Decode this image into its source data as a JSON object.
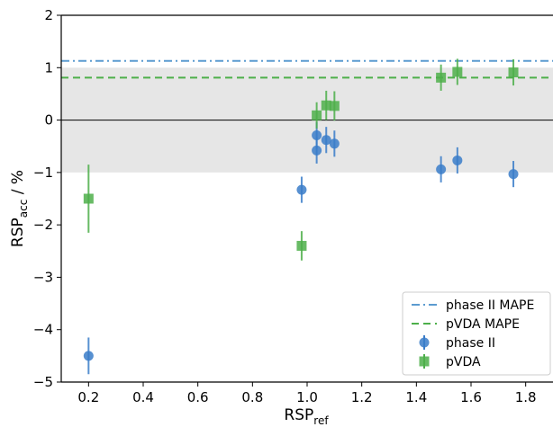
{
  "chart_data": {
    "type": "scatter",
    "xlabel": {
      "main": "RSP",
      "sub": "ref"
    },
    "ylabel": {
      "main": "RSP",
      "sub": "acc",
      "suffix": " / %"
    },
    "xlim": [
      0.1,
      1.9
    ],
    "ylim": [
      -5,
      2
    ],
    "xticks": [
      0.2,
      0.4,
      0.6,
      0.8,
      1.0,
      1.2,
      1.4,
      1.6,
      1.8
    ],
    "xtick_labels": [
      "0.2",
      "0.4",
      "0.6",
      "0.8",
      "1.0",
      "1.2",
      "1.4",
      "1.6",
      "1.8"
    ],
    "yticks": [
      -5,
      -4,
      -3,
      -2,
      -1,
      0,
      1,
      2
    ],
    "ytick_labels": [
      "−5",
      "−4",
      "−3",
      "−2",
      "−1",
      "0",
      "1",
      "2"
    ],
    "band": {
      "y0": -1,
      "y1": 1,
      "color": "#e6e6e6"
    },
    "zero_line": {
      "y": 0,
      "color": "#000000"
    },
    "hlines": [
      {
        "name": "phase II MAPE",
        "y": 1.13,
        "style": "dashdot",
        "color": "#5b9bd0"
      },
      {
        "name": "pVDA MAPE",
        "y": 0.81,
        "style": "dashed",
        "color": "#4daf4a"
      }
    ],
    "series": [
      {
        "name": "phase II",
        "marker": "circle",
        "color": "#3a7dc9",
        "points": [
          {
            "x": 0.2,
            "y": -4.5,
            "err": 0.35
          },
          {
            "x": 0.98,
            "y": -1.33,
            "err": 0.25
          },
          {
            "x": 1.035,
            "y": -0.29,
            "err": 0.25
          },
          {
            "x": 1.035,
            "y": -0.58,
            "err": 0.25
          },
          {
            "x": 1.07,
            "y": -0.38,
            "err": 0.25
          },
          {
            "x": 1.1,
            "y": -0.45,
            "err": 0.25
          },
          {
            "x": 1.49,
            "y": -0.94,
            "err": 0.25
          },
          {
            "x": 1.55,
            "y": -0.77,
            "err": 0.25
          },
          {
            "x": 1.755,
            "y": -1.03,
            "err": 0.25
          }
        ]
      },
      {
        "name": "pVDA",
        "marker": "square",
        "color": "#4daf4a",
        "points": [
          {
            "x": 0.2,
            "y": -1.5,
            "err": 0.65
          },
          {
            "x": 0.98,
            "y": -2.4,
            "err": 0.28
          },
          {
            "x": 1.035,
            "y": 0.09,
            "err": 0.25
          },
          {
            "x": 1.07,
            "y": 0.28,
            "err": 0.28
          },
          {
            "x": 1.1,
            "y": 0.27,
            "err": 0.28
          },
          {
            "x": 1.49,
            "y": 0.81,
            "err": 0.25
          },
          {
            "x": 1.55,
            "y": 0.92,
            "err": 0.25
          },
          {
            "x": 1.755,
            "y": 0.91,
            "err": 0.25
          }
        ]
      }
    ],
    "legend": {
      "placement": "lower-right",
      "entries": [
        "phase II MAPE",
        "pVDA MAPE",
        "phase II",
        "pVDA"
      ]
    }
  }
}
